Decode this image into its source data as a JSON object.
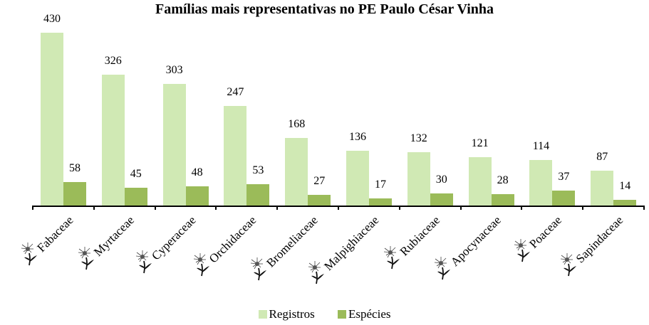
{
  "chart_data": {
    "type": "bar",
    "title": "Famílias mais representativas no PE Paulo César Vinha",
    "xlabel": "",
    "ylabel": "",
    "categories": [
      "Fabaceae",
      "Myrtaceae",
      "Cyperaceae",
      "Orchidaceae",
      "Bromeliaceae",
      "Malpighiaceae",
      "Rubiaceae",
      "Apocynaceae",
      "Poaceae",
      "Sapindaceae"
    ],
    "series": [
      {
        "name": "Registros",
        "color": "#d0e9b4",
        "values": [
          430,
          326,
          303,
          247,
          168,
          136,
          132,
          121,
          114,
          87
        ]
      },
      {
        "name": "Espécies",
        "color": "#9bbb59",
        "values": [
          58,
          45,
          48,
          53,
          27,
          17,
          30,
          28,
          37,
          14
        ]
      }
    ],
    "ylim": [
      0,
      430
    ],
    "grid": false,
    "legend_position": "bottom",
    "data_labels": true
  },
  "title": "Famílias mais representativas no PE Paulo César Vinha",
  "legend": [
    {
      "label": "Registros",
      "color": "#d0e9b4"
    },
    {
      "label": "Espécies",
      "color": "#9bbb59"
    }
  ],
  "category_icon": "flower-icon"
}
